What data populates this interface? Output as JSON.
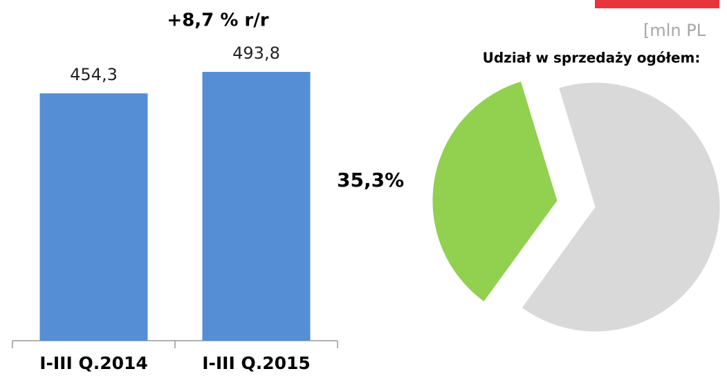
{
  "unit_label": "[mln PL",
  "chart_data": [
    {
      "type": "bar",
      "annotation": "+8,7 % r/r",
      "categories": [
        "I-III Q.2014",
        "I-III Q.2015"
      ],
      "values": [
        454.3,
        493.8
      ],
      "value_labels": [
        "454,3",
        "493,8"
      ],
      "color": "#558ed5"
    },
    {
      "type": "pie",
      "title": "Udział w sprzedaży ogółem:",
      "values": [
        35.3,
        64.7
      ],
      "value_labels": [
        "35,3%",
        null
      ],
      "colors": [
        "#92d050",
        "#d9d9d9"
      ]
    }
  ]
}
